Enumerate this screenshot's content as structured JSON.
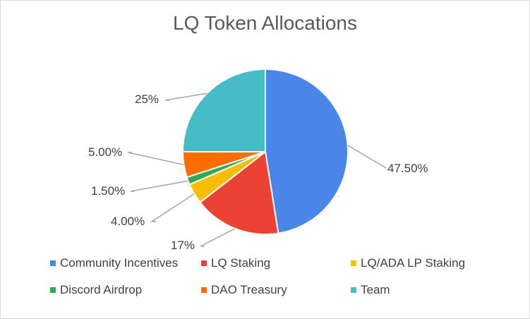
{
  "chart_data": {
    "type": "pie",
    "title": "LQ Token Allocations",
    "categories": [
      "Community Incentives",
      "LQ Staking",
      "LQ/ADA LP Staking",
      "Discord Airdrop",
      "DAO Treasury",
      "Team"
    ],
    "values": [
      47.5,
      17,
      4.0,
      1.5,
      5.0,
      25
    ],
    "data_labels": [
      "47.50%",
      "17%",
      "4.00%",
      "1.50%",
      "5.00%",
      "25%"
    ],
    "colors": [
      "#4a86e8",
      "#ea4335",
      "#fbbc04",
      "#34a853",
      "#ff6d01",
      "#46bdc6"
    ],
    "legend_position": "bottom"
  }
}
